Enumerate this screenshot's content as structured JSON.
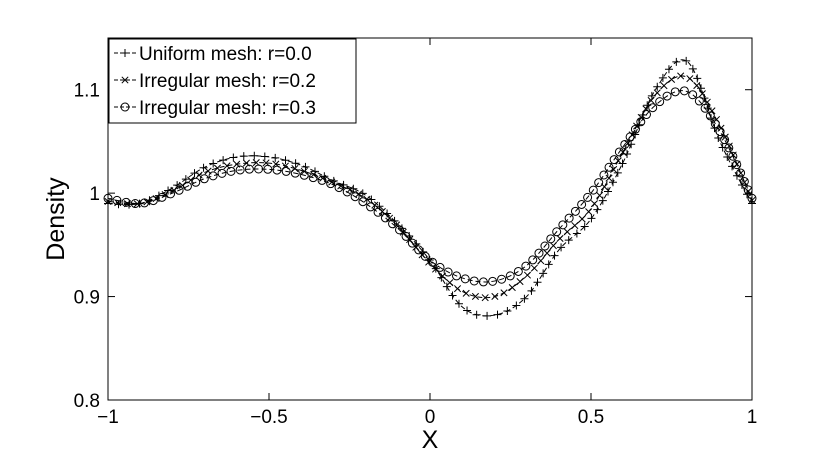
{
  "chart_data": {
    "type": "line",
    "title": "",
    "xlabel": "X",
    "ylabel": "Density",
    "xlim": [
      -1,
      1
    ],
    "ylim": [
      0.8,
      1.15
    ],
    "xticks": [
      -1,
      -0.5,
      0,
      0.5,
      1
    ],
    "xtick_labels": [
      "−1",
      "−0.5",
      "0",
      "0.5",
      "1"
    ],
    "yticks": [
      0.8,
      0.9,
      1,
      1.1
    ],
    "ytick_labels": [
      "0.8",
      "0.9",
      "1",
      "1.1"
    ],
    "grid": false,
    "legend_position": "top-left",
    "series": [
      {
        "name": "Uniform mesh: r=0.0",
        "marker": "plus",
        "line_style": "dashed",
        "color": "#000000",
        "points": [
          [
            -1.0,
            0.99
          ],
          [
            -0.9,
            0.99
          ],
          [
            -0.8,
            1.005
          ],
          [
            -0.7,
            1.025
          ],
          [
            -0.6,
            1.035
          ],
          [
            -0.5,
            1.035
          ],
          [
            -0.4,
            1.027
          ],
          [
            -0.3,
            1.012
          ],
          [
            -0.2,
            0.998
          ],
          [
            -0.1,
            0.97
          ],
          [
            0.0,
            0.935
          ],
          [
            0.1,
            0.89
          ],
          [
            0.2,
            0.882
          ],
          [
            0.3,
            0.9
          ],
          [
            0.4,
            0.945
          ],
          [
            0.5,
            0.975
          ],
          [
            0.6,
            1.03
          ],
          [
            0.7,
            1.1
          ],
          [
            0.8,
            1.127
          ],
          [
            0.9,
            1.05
          ],
          [
            1.0,
            0.99
          ]
        ]
      },
      {
        "name": "Irregular mesh: r=0.2",
        "marker": "x",
        "line_style": "dashed",
        "color": "#000000",
        "points": [
          [
            -1.0,
            0.992
          ],
          [
            -0.9,
            0.99
          ],
          [
            -0.8,
            1.002
          ],
          [
            -0.7,
            1.02
          ],
          [
            -0.6,
            1.028
          ],
          [
            -0.5,
            1.029
          ],
          [
            -0.4,
            1.022
          ],
          [
            -0.3,
            1.01
          ],
          [
            -0.2,
            0.995
          ],
          [
            -0.1,
            0.968
          ],
          [
            0.0,
            0.932
          ],
          [
            0.1,
            0.905
          ],
          [
            0.2,
            0.9
          ],
          [
            0.3,
            0.92
          ],
          [
            0.4,
            0.955
          ],
          [
            0.5,
            0.985
          ],
          [
            0.6,
            1.04
          ],
          [
            0.7,
            1.095
          ],
          [
            0.8,
            1.112
          ],
          [
            0.9,
            1.065
          ],
          [
            1.0,
            0.993
          ]
        ]
      },
      {
        "name": "Irregular mesh: r=0.3",
        "marker": "circle",
        "line_style": "dashed",
        "color": "#000000",
        "points": [
          [
            -1.0,
            0.995
          ],
          [
            -0.9,
            0.99
          ],
          [
            -0.8,
            1.0
          ],
          [
            -0.7,
            1.014
          ],
          [
            -0.6,
            1.022
          ],
          [
            -0.5,
            1.023
          ],
          [
            -0.4,
            1.018
          ],
          [
            -0.3,
            1.008
          ],
          [
            -0.2,
            0.99
          ],
          [
            -0.1,
            0.966
          ],
          [
            0.0,
            0.935
          ],
          [
            0.1,
            0.918
          ],
          [
            0.2,
            0.915
          ],
          [
            0.3,
            0.93
          ],
          [
            0.4,
            0.965
          ],
          [
            0.5,
            1.0
          ],
          [
            0.6,
            1.045
          ],
          [
            0.7,
            1.085
          ],
          [
            0.8,
            1.098
          ],
          [
            0.9,
            1.06
          ],
          [
            1.0,
            0.995
          ]
        ]
      }
    ]
  }
}
